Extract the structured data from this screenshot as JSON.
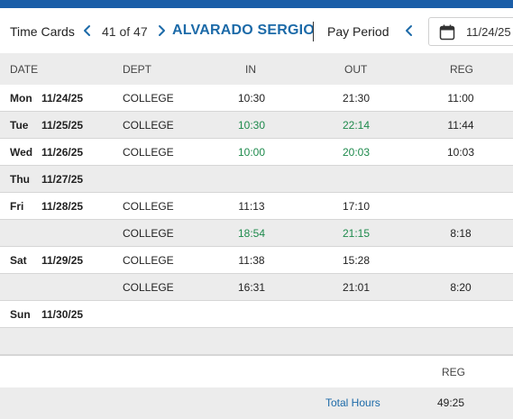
{
  "colors": {
    "brand": "#1b5ea8",
    "link": "#1c6aa8",
    "edited_time": "#1e8a4c",
    "row_alt": "#ececec"
  },
  "header": {
    "title": "Time Cards",
    "prev_icon": "chevron-left-icon",
    "record_position": "41 of 47",
    "next_icon": "chevron-right-icon",
    "employee_name": "ALVARADO SERGIO",
    "pay_period_label": "Pay Period",
    "period_prev_icon": "chevron-left-icon",
    "calendar_icon": "calendar-icon",
    "period_start": "11/24/25"
  },
  "columns": {
    "date": "DATE",
    "dept": "DEPT",
    "in": "IN",
    "out": "OUT",
    "reg": "REG"
  },
  "rows": [
    {
      "day": "Mon",
      "date": "11/24/25",
      "dept": "COLLEGE",
      "in": "10:30",
      "out": "21:30",
      "reg": "11:00",
      "in_edited": false,
      "out_edited": false
    },
    {
      "day": "Tue",
      "date": "11/25/25",
      "dept": "COLLEGE",
      "in": "10:30",
      "out": "22:14",
      "reg": "11:44",
      "in_edited": true,
      "out_edited": true
    },
    {
      "day": "Wed",
      "date": "11/26/25",
      "dept": "COLLEGE",
      "in": "10:00",
      "out": "20:03",
      "reg": "10:03",
      "in_edited": true,
      "out_edited": true
    },
    {
      "day": "Thu",
      "date": "11/27/25",
      "dept": "",
      "in": "",
      "out": "",
      "reg": "",
      "in_edited": false,
      "out_edited": false
    },
    {
      "day": "Fri",
      "date": "11/28/25",
      "dept": "COLLEGE",
      "in": "11:13",
      "out": "17:10",
      "reg": "",
      "in_edited": false,
      "out_edited": false
    },
    {
      "day": "",
      "date": "",
      "dept": "COLLEGE",
      "in": "18:54",
      "out": "21:15",
      "reg": "8:18",
      "in_edited": true,
      "out_edited": true
    },
    {
      "day": "Sat",
      "date": "11/29/25",
      "dept": "COLLEGE",
      "in": "11:38",
      "out": "15:28",
      "reg": "",
      "in_edited": false,
      "out_edited": false
    },
    {
      "day": "",
      "date": "",
      "dept": "COLLEGE",
      "in": "16:31",
      "out": "21:01",
      "reg": "8:20",
      "in_edited": false,
      "out_edited": false
    },
    {
      "day": "Sun",
      "date": "11/30/25",
      "dept": "",
      "in": "",
      "out": "",
      "reg": "",
      "in_edited": false,
      "out_edited": false
    },
    {
      "day": "",
      "date": "",
      "dept": "",
      "in": "",
      "out": "",
      "reg": "",
      "in_edited": false,
      "out_edited": false
    }
  ],
  "summary": {
    "reg_header": "REG",
    "total_label": "Total Hours",
    "total_reg": "49:25"
  }
}
